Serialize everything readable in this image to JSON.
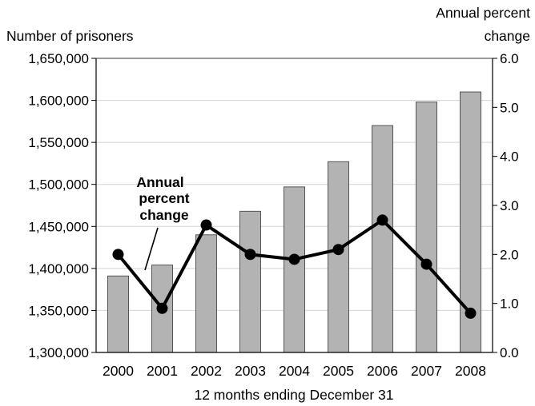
{
  "chart_data": {
    "type": "bar",
    "categories": [
      "2000",
      "2001",
      "2002",
      "2003",
      "2004",
      "2005",
      "2006",
      "2007",
      "2008"
    ],
    "series": [
      {
        "kind": "bar",
        "axis": "left",
        "values": [
          1391000,
          1404000,
          1440000,
          1468000,
          1497000,
          1527000,
          1570000,
          1598000,
          1610000
        ],
        "color": "#b3b3b3"
      },
      {
        "name": "Annual percent change",
        "kind": "line",
        "axis": "right",
        "values": [
          2.0,
          0.9,
          2.6,
          2.0,
          1.9,
          2.1,
          2.7,
          1.8,
          0.8
        ],
        "color": "#000000"
      }
    ],
    "ylabel": "Number of prisoners",
    "ylabel_right": [
      "Annual percent",
      "change"
    ],
    "xlabel": "12 months ending December 31",
    "ylim": [
      1300000,
      1650000
    ],
    "ylim_right": [
      0.0,
      6.0
    ],
    "yticks": [
      "1,300,000",
      "1,350,000",
      "1,400,000",
      "1,450,000",
      "1,500,000",
      "1,550,000",
      "1,600,000",
      "1,650,000"
    ],
    "yticks_right": [
      "0.0",
      "1.0",
      "2.0",
      "3.0",
      "4.0",
      "5.0",
      "6.0"
    ],
    "annotation": [
      "Annual",
      "percent",
      "change"
    ],
    "grid": true
  }
}
